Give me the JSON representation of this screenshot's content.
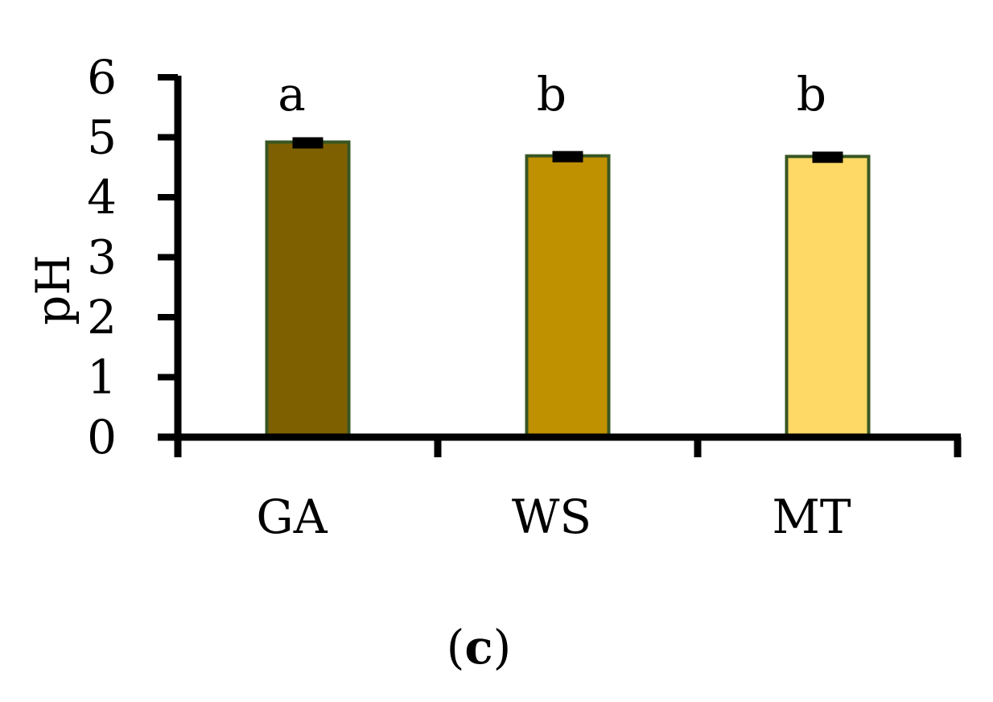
{
  "chart_data": {
    "type": "bar",
    "categories": [
      "GA",
      "WS",
      "MT"
    ],
    "values": [
      4.92,
      4.69,
      4.68
    ],
    "errors": [
      0.06,
      0.06,
      0.05
    ],
    "significance_letters": [
      "a",
      "b",
      "b"
    ],
    "bar_colors": [
      "#7f6000",
      "#bf9000",
      "#ffd966"
    ],
    "bar_edge_color": "#375623",
    "title": "",
    "xlabel": "",
    "ylabel": "pH",
    "ylim": [
      0,
      6
    ],
    "yticks": [
      "0",
      "1",
      "2",
      "3",
      "4",
      "5",
      "6"
    ],
    "grid": false,
    "legend": "none"
  },
  "panel": {
    "open": "(",
    "letter": "c",
    "close": ")"
  }
}
